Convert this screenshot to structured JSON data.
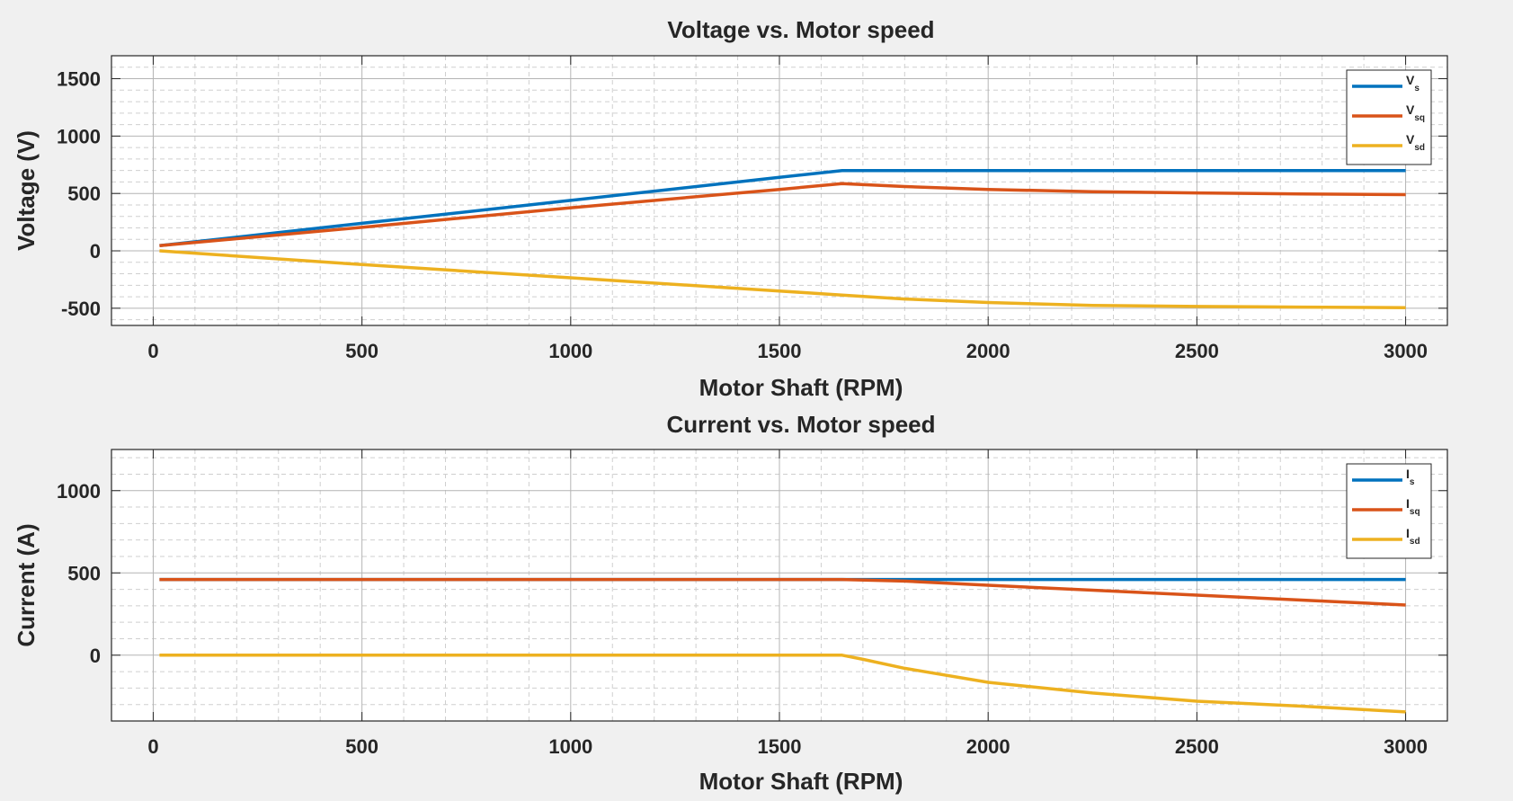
{
  "chart_data": [
    {
      "type": "line",
      "title": "Voltage vs. Motor speed",
      "xlabel": "Motor Shaft (RPM)",
      "ylabel": "Voltage (V)",
      "xlim": [
        -100,
        3100
      ],
      "ylim": [
        -650,
        1700
      ],
      "xticks": [
        0,
        500,
        1000,
        1500,
        2000,
        2500,
        3000
      ],
      "yticks": [
        -500,
        0,
        500,
        1000,
        1500
      ],
      "grid": true,
      "minor_grid": true,
      "legend": "top-right",
      "series": [
        {
          "name": "Vs",
          "label_main": "V",
          "label_sub": "s",
          "color": "#0072BD",
          "x": [
            15,
            500,
            1000,
            1500,
            1650,
            2000,
            2500,
            3000
          ],
          "y": [
            45,
            240,
            440,
            640,
            700,
            700,
            700,
            700
          ]
        },
        {
          "name": "Vsq",
          "label_main": "V",
          "label_sub": "sq",
          "color": "#D95319",
          "x": [
            15,
            500,
            1000,
            1500,
            1650,
            1800,
            2000,
            2250,
            2500,
            2750,
            3000
          ],
          "y": [
            45,
            205,
            375,
            535,
            585,
            560,
            535,
            515,
            505,
            495,
            490
          ]
        },
        {
          "name": "Vsd",
          "label_main": "V",
          "label_sub": "sd",
          "color": "#EDB120",
          "x": [
            15,
            500,
            1000,
            1500,
            1650,
            1800,
            2000,
            2250,
            2500,
            2750,
            3000
          ],
          "y": [
            0,
            -120,
            -235,
            -350,
            -385,
            -420,
            -450,
            -475,
            -485,
            -490,
            -495
          ]
        }
      ]
    },
    {
      "type": "line",
      "title": "Current vs. Motor speed",
      "xlabel": "Motor Shaft (RPM)",
      "ylabel": "Current (A)",
      "xlim": [
        -100,
        3100
      ],
      "ylim": [
        -400,
        1250
      ],
      "xticks": [
        0,
        500,
        1000,
        1500,
        2000,
        2500,
        3000
      ],
      "yticks": [
        0,
        500,
        1000
      ],
      "grid": true,
      "minor_grid": true,
      "legend": "top-right",
      "series": [
        {
          "name": "Is",
          "label_main": "I",
          "label_sub": "s",
          "color": "#0072BD",
          "x": [
            15,
            1000,
            1650,
            2000,
            2500,
            3000
          ],
          "y": [
            460,
            460,
            460,
            460,
            460,
            460
          ]
        },
        {
          "name": "Isq",
          "label_main": "I",
          "label_sub": "sq",
          "color": "#D95319",
          "x": [
            15,
            1000,
            1650,
            1800,
            2000,
            2250,
            2500,
            2750,
            3000
          ],
          "y": [
            460,
            460,
            460,
            450,
            425,
            395,
            365,
            335,
            305
          ]
        },
        {
          "name": "Isd",
          "label_main": "I",
          "label_sub": "sd",
          "color": "#EDB120",
          "x": [
            15,
            1000,
            1650,
            1700,
            1800,
            2000,
            2250,
            2500,
            2750,
            3000
          ],
          "y": [
            0,
            0,
            0,
            -25,
            -80,
            -165,
            -230,
            -280,
            -310,
            -345
          ]
        }
      ]
    }
  ]
}
